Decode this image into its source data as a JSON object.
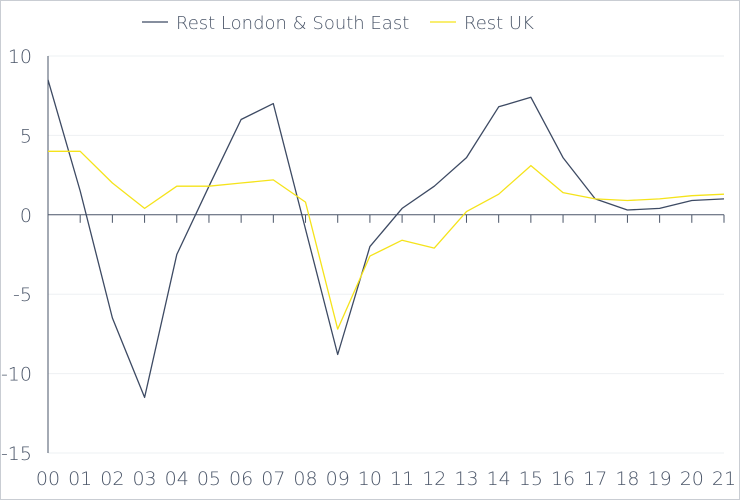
{
  "chart_data": {
    "type": "line",
    "categories": [
      "00",
      "01",
      "02",
      "03",
      "04",
      "05",
      "06",
      "07",
      "08",
      "09",
      "10",
      "11",
      "12",
      "13",
      "14",
      "15",
      "16",
      "17",
      "18",
      "19",
      "20",
      "21"
    ],
    "series": [
      {
        "name": "Rest London & South East",
        "color": "#3d4a63",
        "values": [
          8.5,
          1.5,
          -6.5,
          -11.5,
          -2.5,
          1.8,
          6.0,
          7.0,
          -0.9,
          -8.8,
          -2.0,
          0.4,
          1.8,
          3.6,
          6.8,
          7.4,
          3.6,
          1.0,
          0.3,
          0.4,
          0.9,
          1.0
        ]
      },
      {
        "name": "Rest UK",
        "color": "#f5e31a",
        "values": [
          4.0,
          4.0,
          2.0,
          0.4,
          1.8,
          1.8,
          2.0,
          2.2,
          0.8,
          -7.2,
          -2.6,
          -1.6,
          -2.1,
          0.2,
          1.3,
          3.1,
          1.4,
          1.0,
          0.9,
          1.0,
          1.2,
          1.3
        ]
      }
    ],
    "y_ticks": [
      "10",
      "5",
      "0",
      "-5",
      "-10",
      "-15"
    ],
    "ylim": [
      -15,
      10
    ],
    "grid": true,
    "legend_position": "top-center"
  }
}
